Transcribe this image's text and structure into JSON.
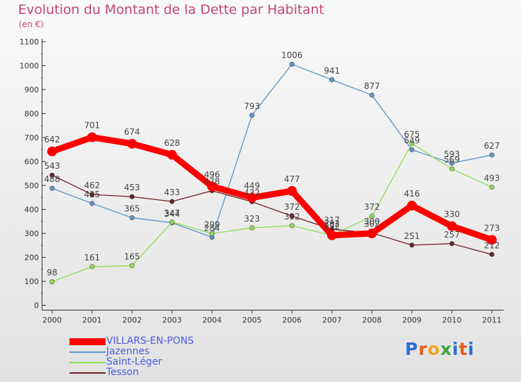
{
  "title": "Evolution du Montant de la Dette par Habitant",
  "unit": "(en €)",
  "brand": "Proxiti",
  "colors": {
    "VILLARS-EN-PONS": "#ff0000",
    "Jazennes": "#5b93c9",
    "Saint-Léger": "#8fdc52",
    "Tesson": "#6b1e24"
  },
  "chart_data": {
    "type": "line",
    "title": "Evolution du Montant de la Dette par Habitant",
    "ylabel": "(en €)",
    "xlabel": "",
    "ylim": [
      0,
      1100
    ],
    "yticks": [
      0,
      100,
      200,
      300,
      400,
      500,
      600,
      700,
      800,
      900,
      1000,
      1100
    ],
    "x": [
      "2000",
      "2001",
      "2002",
      "2003",
      "2004",
      "2005",
      "2006",
      "2007",
      "2008",
      "2009",
      "2010",
      "2011"
    ],
    "grid": false,
    "legend": "bottom-left",
    "series": [
      {
        "name": "VILLARS-EN-PONS",
        "values": [
          642,
          701,
          674,
          628,
          496,
          449,
          477,
          292,
          300,
          416,
          330,
          273
        ]
      },
      {
        "name": "Jazennes",
        "values": [
          488,
          425,
          365,
          344,
          284,
          793,
          1006,
          941,
          877,
          649,
          593,
          627
        ]
      },
      {
        "name": "Saint-Léger",
        "values": [
          98,
          161,
          165,
          347,
          299,
          323,
          332,
          292,
          372,
          675,
          569,
          493
        ]
      },
      {
        "name": "Tesson",
        "values": [
          543,
          462,
          453,
          433,
          478,
          432,
          372,
          317,
          302,
          251,
          257,
          212
        ]
      }
    ]
  }
}
